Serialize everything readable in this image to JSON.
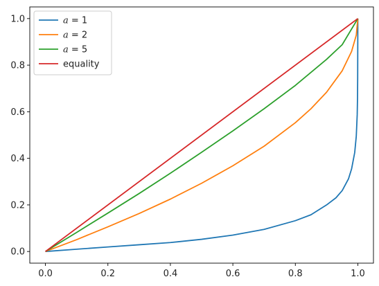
{
  "chart_data": {
    "type": "line",
    "title": "",
    "xlabel": "",
    "ylabel": "",
    "xlim": [
      -0.05,
      1.05
    ],
    "ylim": [
      -0.05,
      1.05
    ],
    "x_ticks": [
      0.0,
      0.2,
      0.4,
      0.6,
      0.8,
      1.0
    ],
    "x_tick_labels": [
      "0.0",
      "0.2",
      "0.4",
      "0.6",
      "0.8",
      "1.0"
    ],
    "y_ticks": [
      0.0,
      0.2,
      0.4,
      0.6,
      0.8,
      1.0
    ],
    "y_tick_labels": [
      "0.0",
      "0.2",
      "0.4",
      "0.6",
      "0.8",
      "1.0"
    ],
    "grid": false,
    "legend_position": "top-left",
    "series": [
      {
        "name": "a = 1",
        "color": "#1f77b4",
        "x": [
          0,
          0.1,
          0.2,
          0.3,
          0.4,
          0.5,
          0.6,
          0.7,
          0.8,
          0.85,
          0.9,
          0.93,
          0.95,
          0.97,
          0.98,
          0.99,
          0.995,
          0.998,
          0.999,
          0.9995,
          1.0
        ],
        "y": [
          0,
          0.0099,
          0.0196,
          0.029,
          0.0384,
          0.0524,
          0.0703,
          0.095,
          0.1323,
          0.1577,
          0.2,
          0.2306,
          0.2615,
          0.3117,
          0.3546,
          0.4249,
          0.495,
          0.5875,
          0.66,
          0.75,
          1.0
        ]
      },
      {
        "name": "a = 2",
        "color": "#ff7f0e",
        "x": [
          0,
          0.1,
          0.2,
          0.3,
          0.4,
          0.5,
          0.6,
          0.7,
          0.8,
          0.85,
          0.9,
          0.95,
          0.98,
          0.995,
          1.0
        ],
        "y": [
          0,
          0.051,
          0.106,
          0.163,
          0.225,
          0.293,
          0.368,
          0.452,
          0.553,
          0.613,
          0.684,
          0.776,
          0.859,
          0.929,
          1.0
        ]
      },
      {
        "name": "a = 5",
        "color": "#2ca02c",
        "x": [
          0,
          0.1,
          0.2,
          0.3,
          0.4,
          0.5,
          0.6,
          0.7,
          0.8,
          0.9,
          0.95,
          1.0
        ],
        "y": [
          0,
          0.082,
          0.165,
          0.249,
          0.336,
          0.426,
          0.518,
          0.613,
          0.713,
          0.825,
          0.888,
          1.0
        ]
      },
      {
        "name": "equality",
        "color": "#d62728",
        "x": [
          0,
          1
        ],
        "y": [
          0,
          1
        ]
      }
    ]
  }
}
